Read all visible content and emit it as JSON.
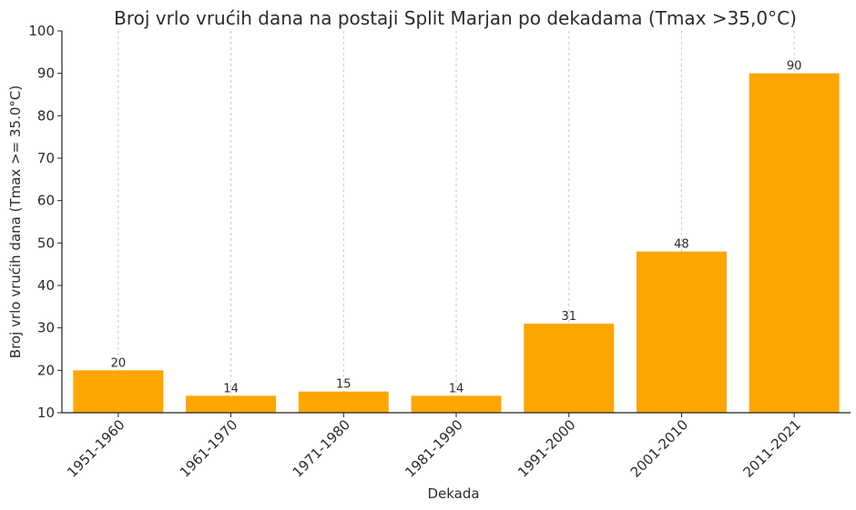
{
  "chart_data": {
    "type": "bar",
    "title": "Broj vrlo vrućih dana na postaji Split Marjan po dekadama (Tmax >35,0°C)",
    "xlabel": "Dekada",
    "ylabel": "Broj vrlo vrućih dana (Tmax >= 35.0°C)",
    "categories": [
      "1951-1960",
      "1961-1970",
      "1971-1980",
      "1981-1990",
      "1991-2000",
      "2001-2010",
      "2011-2021"
    ],
    "values": [
      20,
      14,
      15,
      14,
      31,
      48,
      90
    ],
    "ylim": [
      10,
      100
    ],
    "yticks": [
      10,
      20,
      30,
      40,
      50,
      60,
      70,
      80,
      90,
      100
    ],
    "grid": "x-dashed",
    "bar_color": "#FFA500",
    "value_labels": [
      "20",
      "14",
      "15",
      "14",
      "31",
      "48",
      "90"
    ]
  }
}
